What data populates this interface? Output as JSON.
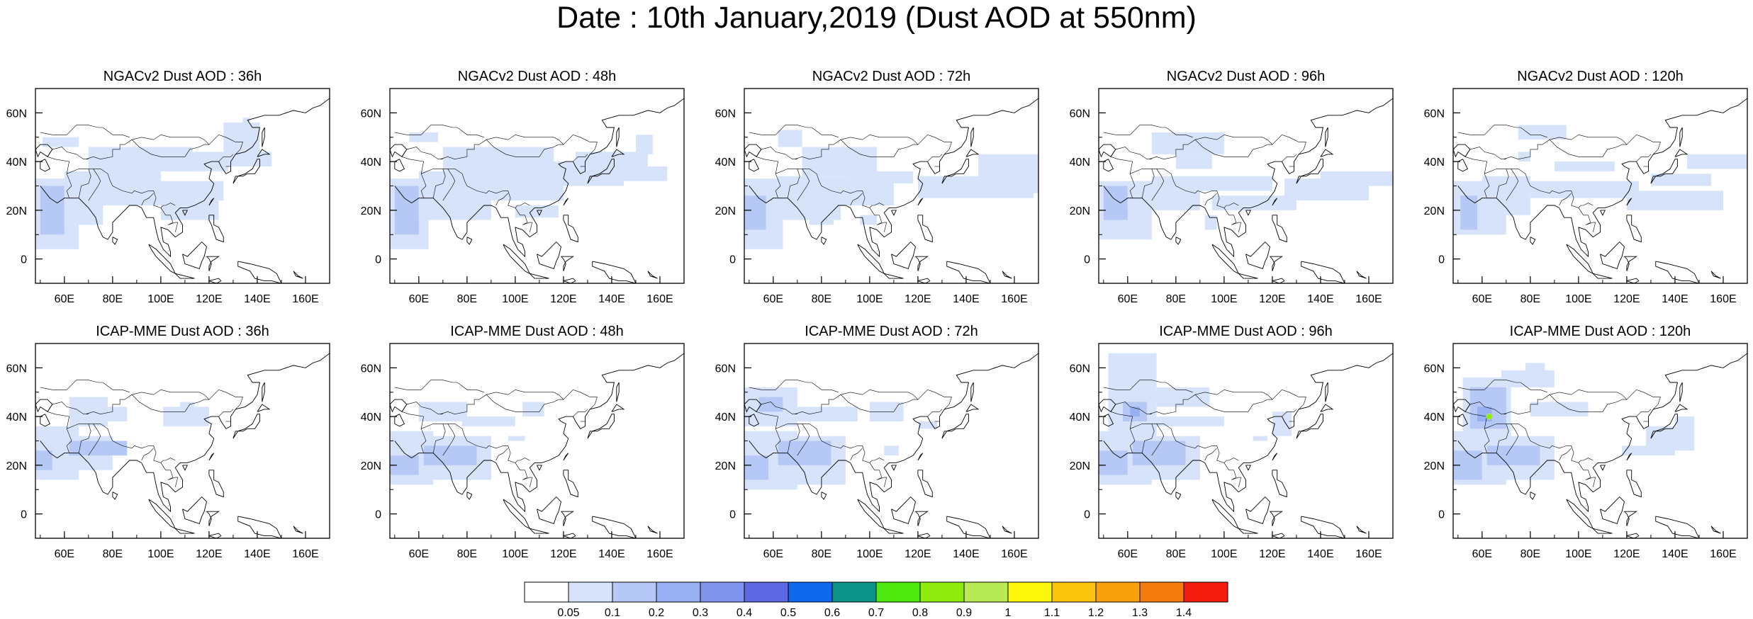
{
  "title": "Date : 10th January,2019 (Dust AOD at 550nm)",
  "rows": [
    {
      "label": "NGACv2 Dust AOD",
      "panels": [
        "NGACv2 Dust AOD : 36h",
        "NGACv2 Dust AOD : 48h",
        "NGACv2 Dust AOD : 72h",
        "NGACv2 Dust AOD : 96h",
        "NGACv2 Dust AOD : 120h"
      ]
    },
    {
      "label": "ICAP-MME Dust AOD",
      "panels": [
        "ICAP-MME Dust AOD : 36h",
        "ICAP-MME Dust AOD : 48h",
        "ICAP-MME Dust AOD : 72h",
        "ICAP-MME Dust AOD : 96h",
        "ICAP-MME Dust AOD : 120h"
      ]
    }
  ],
  "map": {
    "lon_range": [
      48,
      170
    ],
    "lat_range": [
      -10,
      70
    ],
    "lon_ticks": [
      {
        "value": 60,
        "label": "60E"
      },
      {
        "value": 80,
        "label": "80E"
      },
      {
        "value": 100,
        "label": "100E"
      },
      {
        "value": 120,
        "label": "120E"
      },
      {
        "value": 140,
        "label": "140E"
      },
      {
        "value": 160,
        "label": "160E"
      }
    ],
    "lat_ticks": [
      {
        "value": 60,
        "label": "60N"
      },
      {
        "value": 40,
        "label": "40N"
      },
      {
        "value": 20,
        "label": "20N"
      },
      {
        "value": 0,
        "label": "0"
      }
    ]
  },
  "colorbar": {
    "colors": [
      "#ffffff",
      "#d7e3fb",
      "#b6c9f6",
      "#97b0f2",
      "#7f95ee",
      "#5e68e2",
      "#0e69ee",
      "#0b9388",
      "#4fe80f",
      "#8fec0e",
      "#b8ea55",
      "#fbf60a",
      "#f9c40c",
      "#f8a10d",
      "#f67b0e",
      "#f41b0f"
    ],
    "labels": [
      "0.05",
      "0.1",
      "0.2",
      "0.3",
      "0.4",
      "0.5",
      "0.6",
      "0.7",
      "0.8",
      "0.9",
      "1",
      "1.1",
      "1.2",
      "1.3",
      "1.4"
    ]
  }
}
